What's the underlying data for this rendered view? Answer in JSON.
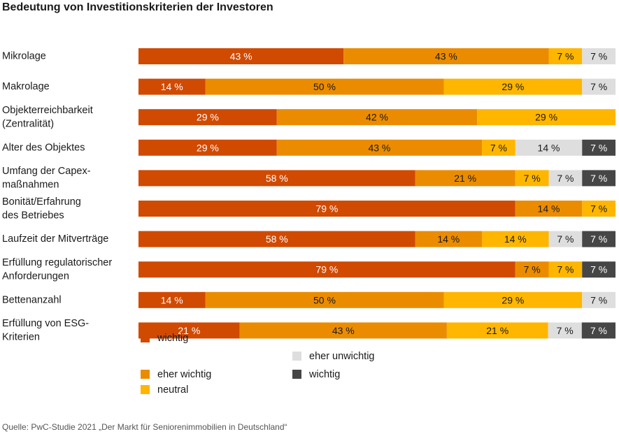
{
  "title": "Bedeutung von Investitionskriterien der Investoren",
  "source": "Quelle: PwC-Studie 2021 „Der Markt für Seniorenimmobilien in Deutschland“",
  "chart_data": {
    "type": "bar",
    "orientation": "horizontal",
    "stacked": true,
    "xlim": [
      0,
      100
    ],
    "unit": "%",
    "categories": [
      [
        "Mikrolage"
      ],
      [
        "Makrolage"
      ],
      [
        "Objekterreichbarkeit",
        "(Zentralität)"
      ],
      [
        "Alter des Objektes"
      ],
      [
        "Umfang der Capex-",
        "maßnahmen"
      ],
      [
        "Bonität/Erfahrung",
        "des Betriebes"
      ],
      [
        "Laufzeit der Mitverträge"
      ],
      [
        "Erfüllung regulatorischer",
        "Anforderungen"
      ],
      [
        "Bettenanzahl"
      ],
      [
        "Erfüllung von ESG-",
        "Kriterien"
      ]
    ],
    "series": [
      {
        "name": "wichtig",
        "color": "#d04a02",
        "label_color": "#ffffff",
        "values": [
          43,
          14,
          29,
          29,
          58,
          79,
          58,
          79,
          14,
          21
        ]
      },
      {
        "name": "eher wichtig",
        "color": "#eb8c00",
        "label_color": "#1a1a1a",
        "values": [
          43,
          50,
          42,
          43,
          21,
          14,
          14,
          7,
          50,
          43
        ]
      },
      {
        "name": "neutral",
        "color": "#ffb600",
        "label_color": "#1a1a1a",
        "values": [
          7,
          29,
          29,
          7,
          7,
          7,
          14,
          7,
          29,
          21
        ]
      },
      {
        "name": "eher unwichtig",
        "color": "#dedede",
        "label_color": "#1a1a1a",
        "values": [
          7,
          7,
          0,
          14,
          7,
          0,
          7,
          0,
          7,
          7
        ]
      },
      {
        "name": "wichtig",
        "color": "#464646",
        "label_color": "#ffffff",
        "values": [
          0,
          0,
          0,
          7,
          7,
          0,
          7,
          7,
          0,
          7
        ]
      }
    ],
    "legend_position": "bottom",
    "grid": false
  }
}
